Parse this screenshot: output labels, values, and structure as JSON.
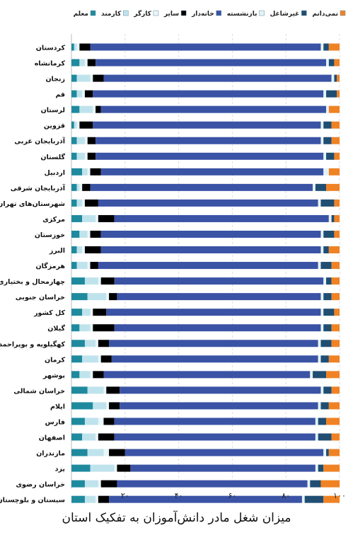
{
  "chart_data": {
    "type": "bar",
    "orientation": "horizontal",
    "stacked": true,
    "title": "میزان شغل مادر دانش‌آموزان به تفکیک استان",
    "xlabel": "",
    "ylabel": "",
    "xlim": [
      0,
      100
    ],
    "x_ticks": [
      "۲۰",
      "۴۰",
      "۶۰",
      "۸۰",
      "۱۰۰"
    ],
    "grid": true,
    "legend_position": "top",
    "categories": [
      "کردستان",
      "کرمانشاه",
      "زنجان",
      "قم",
      "لرستان",
      "قزوین",
      "آذربایجان غربی",
      "گلستان",
      "اردبیل",
      "آذربایجان شرقی",
      "شهرستان‌های تهران",
      "مرکزی",
      "خوزستان",
      "البرز",
      "هرمزگان",
      "چهارمحال و بختیاری",
      "خراسان جنوبی",
      "کل کشور",
      "گیلان",
      "کهگیلویه و بویراحمد",
      "کرمان",
      "بوشهر",
      "خراسان شمالی",
      "ایلام",
      "فارس",
      "اصفهان",
      "مازندران",
      "یزد",
      "خراسان رضوی",
      "سیستان و بلوچستان"
    ],
    "series": [
      {
        "name": "معلم",
        "color": "#1f8a9e",
        "values": [
          1,
          3,
          2,
          2,
          3,
          1,
          2,
          2,
          4,
          2,
          2,
          4,
          3,
          2,
          2,
          5,
          6,
          4,
          3,
          5,
          4,
          3,
          6,
          8,
          5,
          4,
          6,
          7,
          5,
          5
        ]
      },
      {
        "name": "کارمند",
        "color": "#bfe3ec",
        "values": [
          1,
          2,
          5,
          2,
          5,
          1,
          3,
          3,
          2,
          1,
          2,
          5,
          3,
          2,
          4,
          5,
          7,
          3,
          4,
          4,
          6,
          4,
          6,
          5,
          5,
          5,
          6,
          9,
          5,
          4
        ]
      },
      {
        "name": "کارگر",
        "color": "#eaf6f9",
        "values": [
          1,
          1,
          1,
          1,
          1,
          1,
          1,
          1,
          1,
          1,
          1,
          1,
          1,
          1,
          1,
          1,
          1,
          1,
          1,
          1,
          1,
          1,
          1,
          1,
          2,
          1,
          2,
          1,
          1,
          1
        ]
      },
      {
        "name": "سایر",
        "color": "#000000",
        "values": [
          4,
          3,
          4,
          3,
          2,
          5,
          3,
          3,
          4,
          3,
          5,
          6,
          4,
          6,
          3,
          5,
          3,
          5,
          8,
          4,
          4,
          4,
          5,
          4,
          4,
          6,
          6,
          5,
          6,
          4
        ]
      },
      {
        "name": "خانه‌دار",
        "color": "#3a53a5",
        "values": [
          86,
          86,
          85,
          86,
          84,
          85,
          84,
          85,
          83,
          83,
          82,
          80,
          82,
          82,
          82,
          78,
          76,
          80,
          77,
          78,
          77,
          77,
          75,
          74,
          75,
          75,
          74,
          69,
          71,
          72
        ]
      },
      {
        "name": "بازنشسته",
        "color": "#e3f2f6",
        "values": [
          1,
          1,
          1,
          1,
          1,
          1,
          1,
          1,
          2,
          1,
          1,
          1,
          1,
          1,
          1,
          1,
          1,
          1,
          1,
          1,
          1,
          1,
          1,
          1,
          1,
          1,
          1,
          1,
          1,
          1
        ]
      },
      {
        "name": "غیرشاغل",
        "color": "#1f4e72",
        "values": [
          2,
          2,
          1,
          4,
          0,
          3,
          3,
          3,
          0,
          4,
          5,
          1,
          4,
          2,
          4,
          2,
          3,
          4,
          3,
          4,
          3,
          5,
          3,
          3,
          3,
          5,
          1,
          2,
          4,
          7
        ]
      },
      {
        "name": "نمی‌دانم",
        "color": "#f08224",
        "values": [
          4,
          2,
          1,
          1,
          4,
          3,
          3,
          2,
          4,
          5,
          2,
          2,
          2,
          4,
          3,
          3,
          3,
          2,
          3,
          3,
          4,
          5,
          3,
          4,
          5,
          3,
          4,
          6,
          7,
          6
        ]
      }
    ]
  }
}
